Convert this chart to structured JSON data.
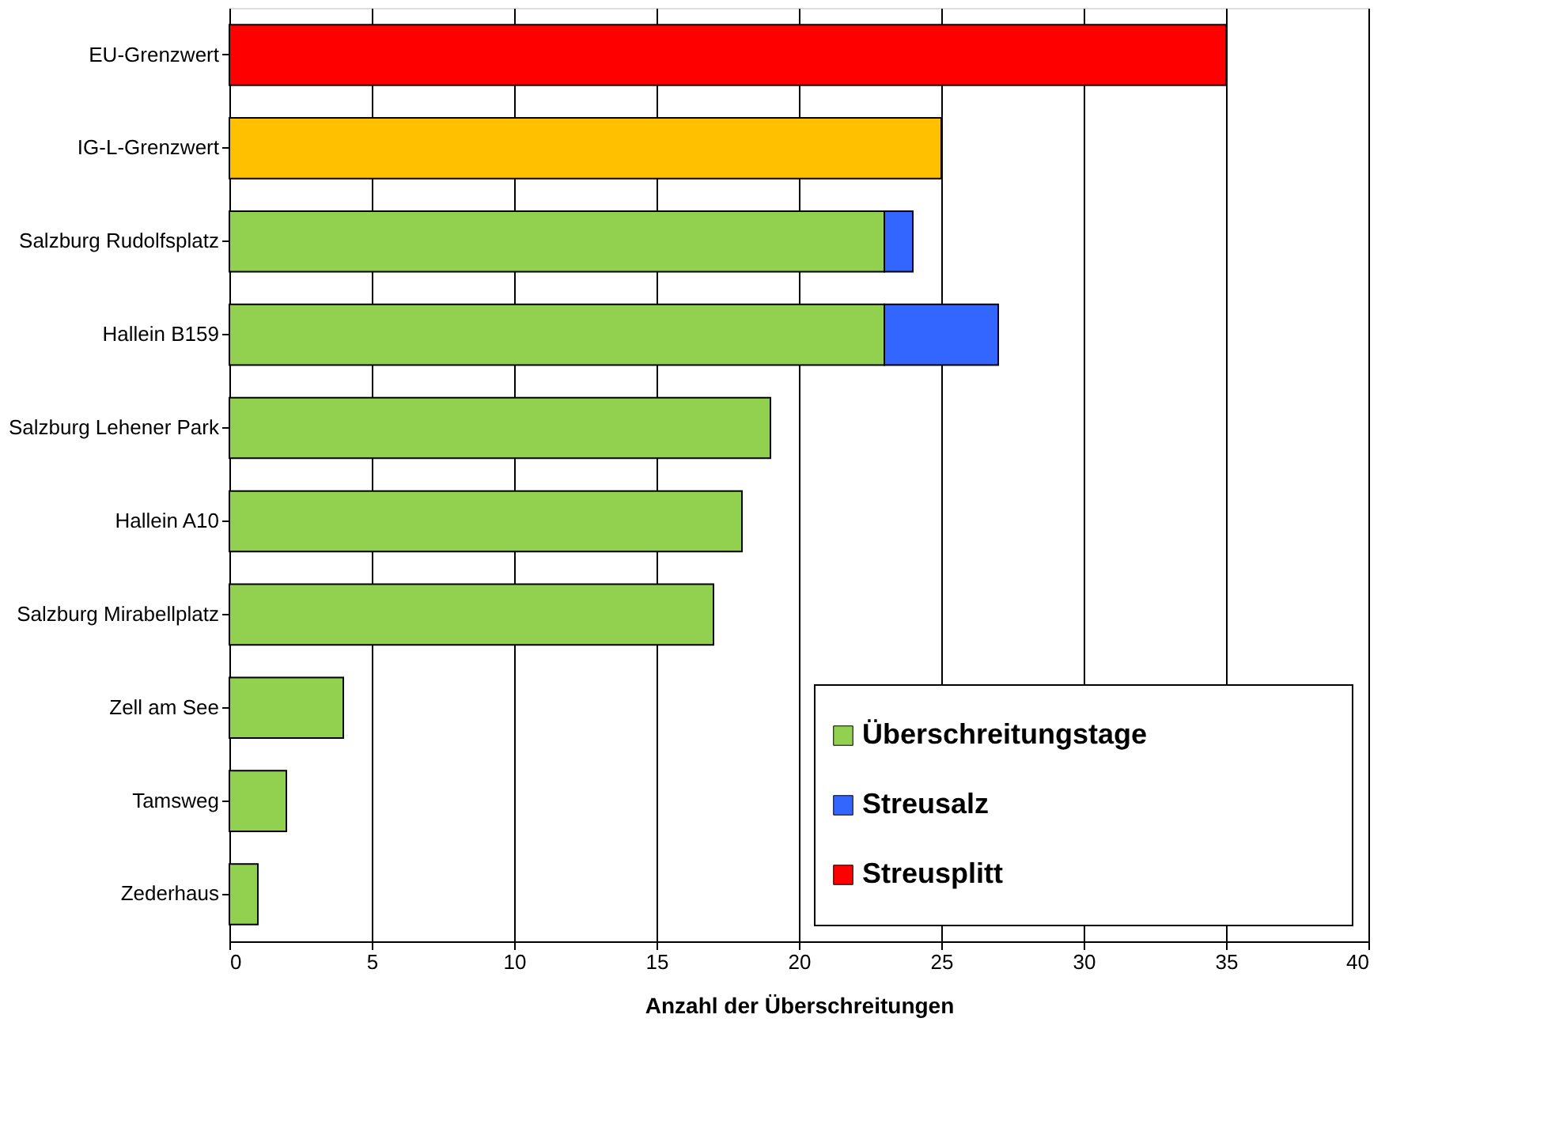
{
  "chart_data": {
    "type": "bar",
    "orientation": "horizontal",
    "stacked": true,
    "categories": [
      "EU-Grenzwert",
      "IG-L-Grenzwert",
      "Salzburg Rudolfsplatz",
      "Hallein B159",
      "Salzburg Lehener Park",
      "Hallein A10",
      "Salzburg Mirabellplatz",
      "Zell am See",
      "Tamsweg",
      "Zederhaus"
    ],
    "series": [
      {
        "name": "Überschreitungstage",
        "color": "#92d050",
        "values": [
          null,
          null,
          23,
          23,
          19,
          18,
          17,
          4,
          2,
          1
        ]
      },
      {
        "name": "Streusalz",
        "color": "#3366ff",
        "values": [
          null,
          null,
          1,
          4,
          null,
          null,
          null,
          null,
          null,
          null
        ]
      },
      {
        "name": "Streusplitt",
        "color": "#ff0000",
        "values": [
          35,
          null,
          null,
          null,
          null,
          null,
          null,
          null,
          null,
          null
        ]
      },
      {
        "color": "#ffc000",
        "values": [
          null,
          25,
          null,
          null,
          null,
          null,
          null,
          null,
          null,
          null
        ]
      }
    ],
    "xlabel": "Anzahl der Überschreitungen",
    "xlim": [
      0,
      40
    ],
    "xticks": [
      0,
      5,
      10,
      15,
      20,
      25,
      30,
      35,
      40
    ],
    "grid": "x",
    "legend": "bottom right"
  }
}
